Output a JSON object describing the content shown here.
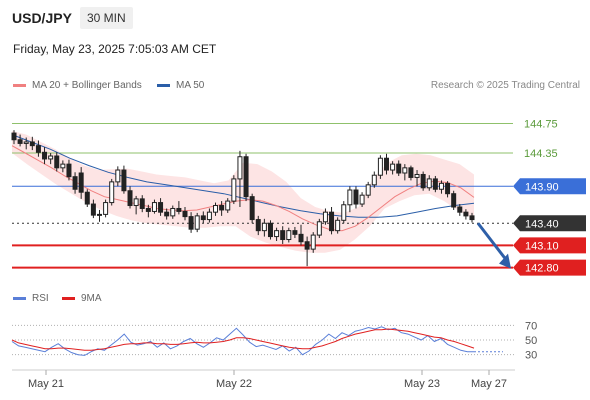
{
  "header": {
    "symbol": "USD/JPY",
    "timeframe": "30 MIN",
    "datetime": "Friday, May 23, 2025 7:05:03 AM CET"
  },
  "legend": {
    "ma20_label": "MA 20 + Bollinger Bands",
    "ma50_label": "MA 50",
    "credit": "Research © 2025 Trading Central"
  },
  "rsi_legend": {
    "rsi_label": "RSI",
    "ma_label": "9MA"
  },
  "colors": {
    "candle": "#222222",
    "ma20": "#f08080",
    "bollinger_fill": "#fde4e4",
    "ma50": "#2a5ea8",
    "green_level": "#8fc16b",
    "blue_level": "#3a6fd8",
    "red_level": "#e02020",
    "current_price": "#333333",
    "arrow": "#2e5fa8",
    "rsi": "#5a7fd8",
    "rsi_ma": "#e02020"
  },
  "chart_data": [
    {
      "type": "candlestick",
      "x_ticks": [
        "May 21",
        "May 22",
        "May 23",
        "May 27"
      ],
      "ylim": [
        142.7,
        145.0
      ],
      "levels": [
        {
          "value": 144.75,
          "label": "144.75",
          "kind": "resistance"
        },
        {
          "value": 144.35,
          "label": "144.35",
          "kind": "resistance"
        },
        {
          "value": 143.9,
          "label": "143.90",
          "kind": "pivot"
        },
        {
          "value": 143.4,
          "label": "143.40",
          "kind": "current"
        },
        {
          "value": 143.1,
          "label": "143.10",
          "kind": "support"
        },
        {
          "value": 142.8,
          "label": "142.80",
          "kind": "support"
        }
      ],
      "candles": [
        [
          144.62,
          144.66,
          144.47,
          144.53
        ],
        [
          144.53,
          144.6,
          144.44,
          144.48
        ],
        [
          144.48,
          144.56,
          144.4,
          144.5
        ],
        [
          144.5,
          144.57,
          144.39,
          144.45
        ],
        [
          144.45,
          144.52,
          144.3,
          144.36
        ],
        [
          144.36,
          144.43,
          144.2,
          144.27
        ],
        [
          144.27,
          144.35,
          144.2,
          144.31
        ],
        [
          144.31,
          144.36,
          144.1,
          144.15
        ],
        [
          144.15,
          144.25,
          144.09,
          144.2
        ],
        [
          144.2,
          144.26,
          143.98,
          144.03
        ],
        [
          144.03,
          144.09,
          143.8,
          143.86
        ],
        [
          144.08,
          144.16,
          143.73,
          143.82
        ],
        [
          143.82,
          143.86,
          143.62,
          143.66
        ],
        [
          143.66,
          143.72,
          143.47,
          143.51
        ],
        [
          143.51,
          143.58,
          143.42,
          143.52
        ],
        [
          143.52,
          143.72,
          143.48,
          143.68
        ],
        [
          143.68,
          144.0,
          143.64,
          143.96
        ],
        [
          143.96,
          144.17,
          143.9,
          144.12
        ],
        [
          144.12,
          144.18,
          143.8,
          143.84
        ],
        [
          143.84,
          143.9,
          143.6,
          143.64
        ],
        [
          143.64,
          143.77,
          143.52,
          143.73
        ],
        [
          143.73,
          143.78,
          143.55,
          143.6
        ],
        [
          143.6,
          143.65,
          143.48,
          143.56
        ],
        [
          143.56,
          143.72,
          143.53,
          143.68
        ],
        [
          143.68,
          143.74,
          143.5,
          143.55
        ],
        [
          143.55,
          143.6,
          143.45,
          143.5
        ],
        [
          143.5,
          143.64,
          143.46,
          143.6
        ],
        [
          143.6,
          143.7,
          143.52,
          143.56
        ],
        [
          143.56,
          143.62,
          143.44,
          143.49
        ],
        [
          143.49,
          143.55,
          143.27,
          143.32
        ],
        [
          143.32,
          143.54,
          143.28,
          143.5
        ],
        [
          143.5,
          143.56,
          143.4,
          143.45
        ],
        [
          143.45,
          143.6,
          143.41,
          143.55
        ],
        [
          143.55,
          143.68,
          143.5,
          143.64
        ],
        [
          143.64,
          143.7,
          143.5,
          143.58
        ],
        [
          143.58,
          143.74,
          143.54,
          143.7
        ],
        [
          143.7,
          144.05,
          143.66,
          144.0
        ],
        [
          144.0,
          144.38,
          143.62,
          144.3
        ],
        [
          144.3,
          144.34,
          143.7,
          143.76
        ],
        [
          143.76,
          143.8,
          143.4,
          143.45
        ],
        [
          143.45,
          143.5,
          143.24,
          143.3
        ],
        [
          143.3,
          143.46,
          143.22,
          143.4
        ],
        [
          143.4,
          143.44,
          143.18,
          143.22
        ],
        [
          143.22,
          143.34,
          143.16,
          143.3
        ],
        [
          143.3,
          143.36,
          143.12,
          143.18
        ],
        [
          143.18,
          143.34,
          143.14,
          143.3
        ],
        [
          143.3,
          143.35,
          143.2,
          143.25
        ],
        [
          143.25,
          143.38,
          143.1,
          143.15
        ],
        [
          143.15,
          143.22,
          142.82,
          143.05
        ],
        [
          143.05,
          143.28,
          143.0,
          143.24
        ],
        [
          143.24,
          143.46,
          143.2,
          143.42
        ],
        [
          143.42,
          143.6,
          143.38,
          143.55
        ],
        [
          143.55,
          143.62,
          143.25,
          143.3
        ],
        [
          143.3,
          143.48,
          143.26,
          143.44
        ],
        [
          143.44,
          143.7,
          143.4,
          143.65
        ],
        [
          143.65,
          143.9,
          143.55,
          143.85
        ],
        [
          143.85,
          143.9,
          143.6,
          143.66
        ],
        [
          143.66,
          143.82,
          143.62,
          143.78
        ],
        [
          143.78,
          143.96,
          143.74,
          143.92
        ],
        [
          143.92,
          144.1,
          143.88,
          144.05
        ],
        [
          144.05,
          144.32,
          144.0,
          144.28
        ],
        [
          144.28,
          144.34,
          144.06,
          144.12
        ],
        [
          144.12,
          144.24,
          144.06,
          144.2
        ],
        [
          144.2,
          144.25,
          144.04,
          144.08
        ],
        [
          144.08,
          144.2,
          143.98,
          144.15
        ],
        [
          144.15,
          144.18,
          143.98,
          144.02
        ],
        [
          144.02,
          144.12,
          143.9,
          144.06
        ],
        [
          144.06,
          144.1,
          143.84,
          143.88
        ],
        [
          143.88,
          144.05,
          143.84,
          144.0
        ],
        [
          144.0,
          144.04,
          143.82,
          143.86
        ],
        [
          143.86,
          143.98,
          143.8,
          143.94
        ],
        [
          143.94,
          143.97,
          143.75,
          143.8
        ],
        [
          143.8,
          143.84,
          143.58,
          143.62
        ],
        [
          143.62,
          143.66,
          143.5,
          143.55
        ],
        [
          143.55,
          143.59,
          143.45,
          143.5
        ],
        [
          143.5,
          143.54,
          143.41,
          143.45
        ]
      ],
      "ma20": [
        144.45,
        144.35,
        144.25,
        144.15,
        144.04,
        143.94,
        143.84,
        143.76,
        143.72,
        143.68,
        143.64,
        143.6,
        143.58,
        143.57,
        143.58,
        143.62,
        143.66,
        143.7,
        143.72,
        143.7,
        143.64,
        143.56,
        143.46,
        143.38,
        143.32,
        143.3,
        143.36,
        143.48,
        143.62,
        143.76,
        143.86,
        143.94,
        143.97,
        143.95,
        143.88,
        143.75
      ],
      "ma50": [
        144.6,
        144.5,
        144.4,
        144.28,
        144.18,
        144.09,
        144.02,
        143.96,
        143.92,
        143.88,
        143.84,
        143.8,
        143.74,
        143.68,
        143.62,
        143.57,
        143.53,
        143.5,
        143.48,
        143.48,
        143.5,
        143.55,
        143.6,
        143.64,
        143.67
      ],
      "bollinger_upper": [
        144.65,
        144.6,
        144.5,
        144.4,
        144.28,
        144.18,
        144.12,
        144.13,
        144.14,
        144.1,
        144.06,
        144.04,
        144.02,
        143.98,
        143.94,
        143.98,
        144.22,
        144.2,
        144.1,
        143.96,
        143.74,
        143.62,
        143.56,
        143.54,
        143.62,
        144.0,
        144.22,
        144.32,
        144.34,
        144.32,
        144.26,
        144.2,
        144.06
      ],
      "bollinger_lower": [
        144.35,
        144.2,
        144.06,
        143.92,
        143.8,
        143.68,
        143.58,
        143.5,
        143.44,
        143.4,
        143.38,
        143.36,
        143.34,
        143.34,
        143.36,
        143.36,
        143.22,
        143.14,
        143.08,
        143.03,
        143.0,
        143.0,
        143.04,
        143.18,
        143.36,
        143.6,
        143.7,
        143.78,
        143.8,
        143.7,
        143.56,
        143.46
      ]
    },
    {
      "type": "line",
      "ylim": [
        20,
        80
      ],
      "y_ticks": [
        70,
        50,
        30
      ],
      "series": [
        {
          "name": "RSI",
          "values": [
            48,
            42,
            40,
            38,
            36,
            34,
            40,
            45,
            38,
            33,
            30,
            29,
            34,
            38,
            36,
            43,
            50,
            58,
            47,
            43,
            45,
            48,
            40,
            46,
            38,
            42,
            48,
            52,
            45,
            40,
            46,
            53,
            50,
            58,
            66,
            57,
            47,
            41,
            43,
            40,
            37,
            42,
            35,
            40,
            30,
            35,
            44,
            50,
            58,
            52,
            60,
            56,
            62,
            64,
            67,
            65,
            68,
            64,
            66,
            60,
            58,
            54,
            50,
            56,
            48,
            52,
            44,
            40,
            36,
            34,
            34
          ]
        },
        {
          "name": "9MA",
          "values": [
            50,
            46,
            44,
            42,
            40,
            38,
            38,
            39,
            39,
            38,
            37,
            36,
            36,
            37,
            38,
            40,
            42,
            44,
            45,
            45,
            46,
            46,
            45,
            45,
            44,
            44,
            45,
            46,
            47,
            46,
            46,
            47,
            48,
            50,
            53,
            53,
            52,
            50,
            48,
            46,
            44,
            42,
            40,
            39,
            38,
            38,
            40,
            42,
            45,
            48,
            52,
            55,
            58,
            60,
            62,
            64,
            64,
            65,
            64,
            63,
            62,
            60,
            58,
            56,
            54,
            53,
            50,
            48,
            45,
            42,
            39
          ]
        }
      ]
    }
  ]
}
